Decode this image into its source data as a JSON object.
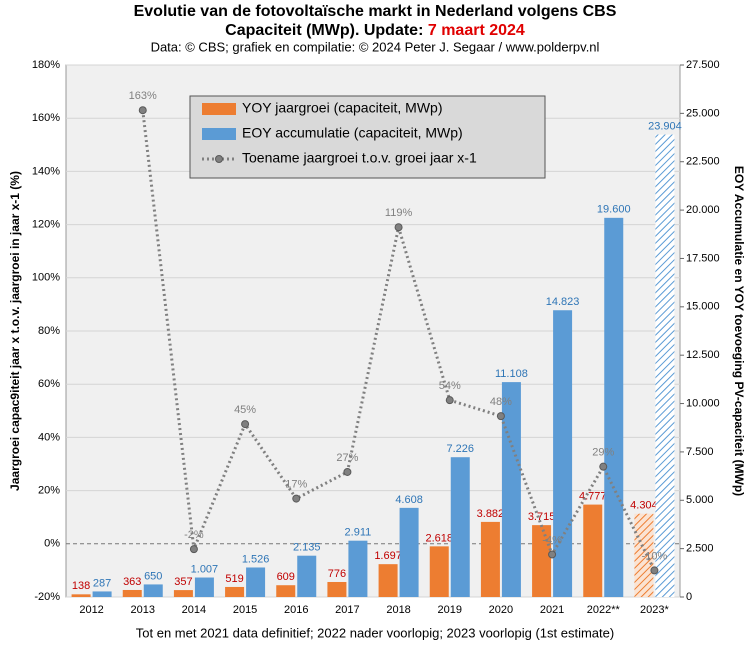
{
  "chart_data": {
    "type": "bar",
    "title": "Evolutie van de fotovoltaïsche markt in Nederland volgens CBS",
    "title_line2": "Capaciteit (MWp). Update: ",
    "title_date": "7 maart 2024",
    "subtitle": "Data: © CBS; grafiek en compilatie: © 2024 Peter J. Segaar / www.polderpv.nl",
    "footnote": "Tot en met 2021 data definitief; 2022 nader voorlopig; 2023 voorlopig (1st estimate)",
    "ylabel": "Jaargroei capac9iteit jaar x t.o.v. jaargroei in jaar x-1 (%)",
    "y2label": "EOY Accumulatie en YOY toevoeging PV-capaciteit (MWp)",
    "categories": [
      "2012",
      "2013",
      "2014",
      "2015",
      "2016",
      "2017",
      "2018",
      "2019",
      "2020",
      "2021",
      "2022**",
      "2023*"
    ],
    "hatched_category": "2023*",
    "series": [
      {
        "name": "YOY jaargroei (capaciteit, MWp)",
        "color": "#ed7d31",
        "label_color": "#c00000",
        "axis": "y2",
        "kind": "bar",
        "values": [
          138,
          363,
          357,
          519,
          609,
          776,
          1697,
          2618,
          3882,
          3715,
          4777,
          4304
        ],
        "value_labels": [
          "138",
          "363",
          "357",
          "519",
          "609",
          "776",
          "1.697",
          "2.618",
          "3.882",
          "3.715",
          "4.777",
          "4.304"
        ]
      },
      {
        "name": "EOY accumulatie (capaciteit, MWp)",
        "color": "#5b9bd5",
        "label_color": "#2e75b6",
        "axis": "y2",
        "kind": "bar",
        "values": [
          287,
          650,
          1007,
          1526,
          2135,
          2911,
          4608,
          7226,
          11108,
          14823,
          19600,
          23904
        ],
        "value_labels": [
          "287",
          "650",
          "1.007",
          "1.526",
          "2.135",
          "2.911",
          "4.608",
          "7.226",
          "11.108",
          "14.823",
          "19.600",
          "23.904"
        ]
      },
      {
        "name": "Toename jaargroei t.o.v. groei jaar x-1",
        "color": "#808080",
        "label_color": "#808080",
        "axis": "y",
        "kind": "line",
        "values": [
          null,
          163,
          -2,
          45,
          17,
          27,
          119,
          54,
          48,
          -4,
          29,
          -10
        ],
        "value_labels": [
          null,
          "163%",
          "-2%",
          "45%",
          "17%",
          "27%",
          "119%",
          "54%",
          "48%",
          "-4%",
          "29%",
          "-10%"
        ]
      }
    ],
    "ylim": [
      -20,
      180
    ],
    "yticks": [
      {
        "value": -20,
        "label": "-20%"
      },
      {
        "value": 0,
        "label": "0%"
      },
      {
        "value": 20,
        "label": "20%"
      },
      {
        "value": 40,
        "label": "40%"
      },
      {
        "value": 60,
        "label": "60%"
      },
      {
        "value": 80,
        "label": "80%"
      },
      {
        "value": 100,
        "label": "100%"
      },
      {
        "value": 120,
        "label": "120%"
      },
      {
        "value": 140,
        "label": "140%"
      },
      {
        "value": 160,
        "label": "160%"
      },
      {
        "value": 180,
        "label": "180%"
      }
    ],
    "y2lim": [
      0,
      27500
    ],
    "y2ticks": [
      0,
      {
        "value": 2500,
        "label": "2.500"
      },
      {
        "value": 5000,
        "label": "5.000"
      },
      {
        "value": 7500,
        "label": "7.500"
      },
      {
        "value": 10000,
        "label": "10.000"
      },
      {
        "value": 12500,
        "label": "12.500"
      },
      {
        "value": 15000,
        "label": "15.000"
      },
      {
        "value": 17500,
        "label": "17.500"
      },
      {
        "value": 20000,
        "label": "20.000"
      },
      {
        "value": 22500,
        "label": "22.500"
      },
      {
        "value": 25000,
        "label": "25.000"
      },
      {
        "value": 27500,
        "label": "27.500"
      }
    ],
    "grid": true
  }
}
